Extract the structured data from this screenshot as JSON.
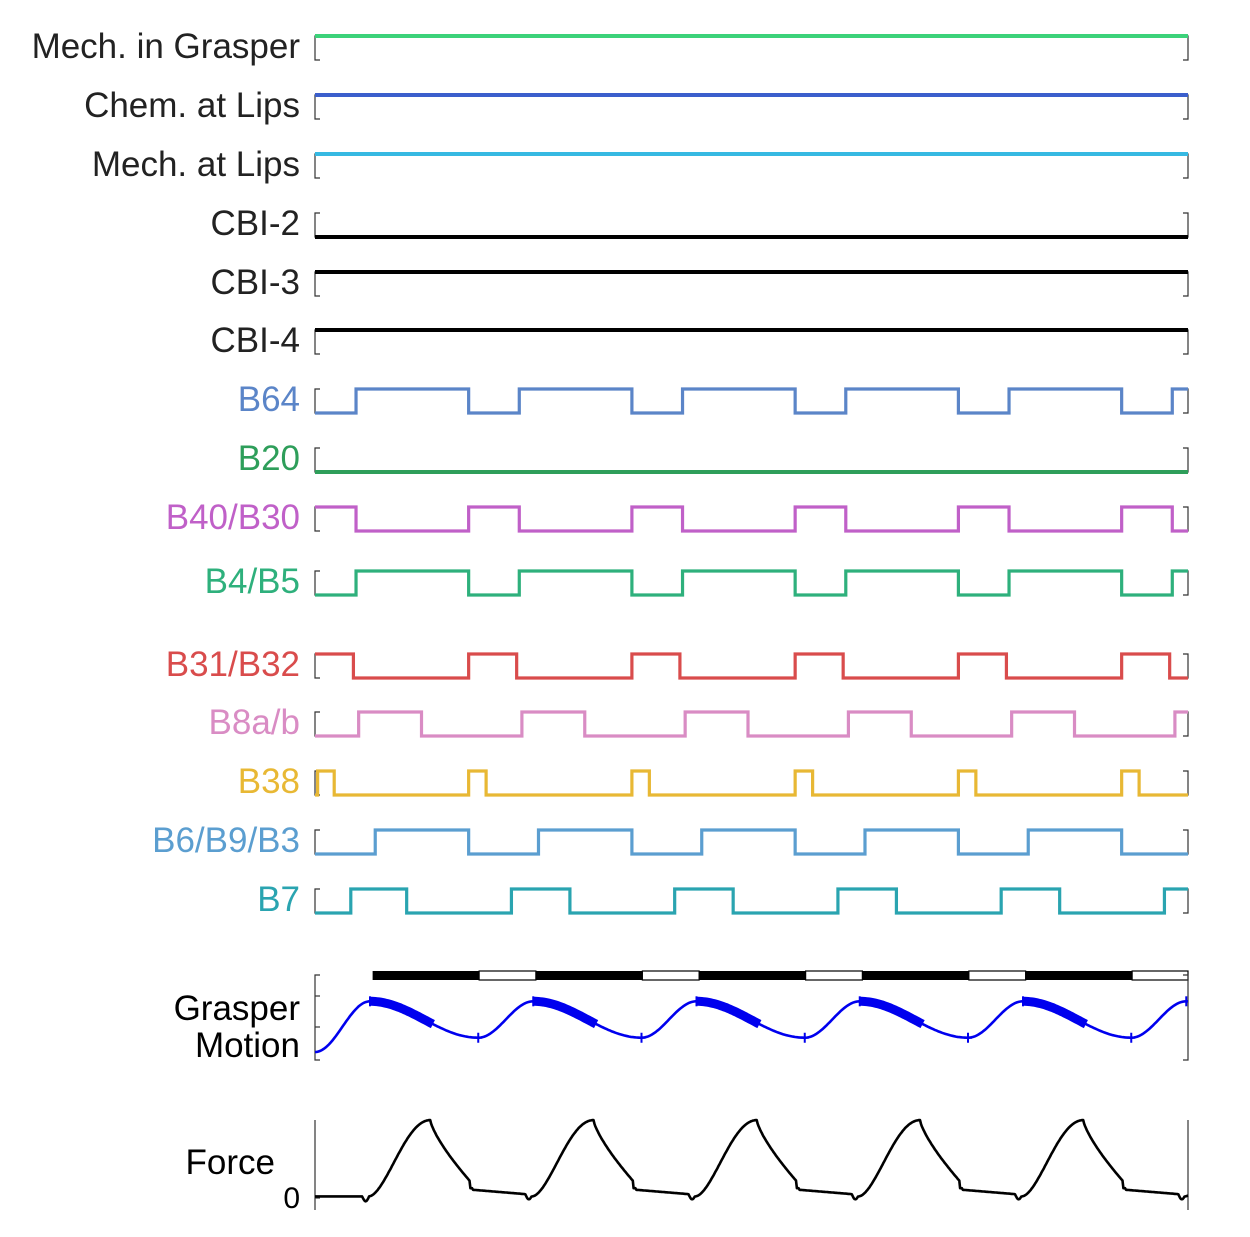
{
  "colors": {
    "mech_grasper": "#3cd27a",
    "chem_lips": "#3b5fcc",
    "mech_lips": "#36b9e2",
    "cbi": "#000000",
    "b64": "#5b85c8",
    "b20": "#2e9e5a",
    "b40_b30": "#c060c8",
    "b4_b5": "#2eb07c",
    "b31_b32": "#d94c4c",
    "b8ab": "#d98cc4",
    "b38": "#e8b834",
    "b6_b9_b3": "#5b9ed0",
    "b7": "#2aa4b0",
    "grasper": "#0000ee",
    "force": "#000000",
    "axis": "#333333"
  },
  "chart_data": [
    {
      "type": "line",
      "title": "",
      "xlim": [
        0,
        1000
      ],
      "traces": [
        {
          "name": "Mech. in Grasper",
          "state": "high",
          "color_key": "mech_grasper"
        },
        {
          "name": "Chem. at Lips",
          "state": "high",
          "color_key": "chem_lips"
        },
        {
          "name": "Mech. at Lips",
          "state": "high",
          "color_key": "mech_lips"
        },
        {
          "name": "CBI-2",
          "state": "low",
          "color_key": "cbi"
        },
        {
          "name": "CBI-3",
          "state": "high",
          "color_key": "cbi"
        },
        {
          "name": "CBI-4",
          "state": "high",
          "color_key": "cbi"
        },
        {
          "name": "B64",
          "state": "pulses",
          "color_key": "b64",
          "on": [
            [
              47,
              176
            ],
            [
              234,
              363
            ],
            [
              421,
              550
            ],
            [
              608,
              737
            ],
            [
              795,
              924
            ],
            [
              982,
              1000
            ]
          ]
        },
        {
          "name": "B20",
          "state": "low",
          "color_key": "b20"
        },
        {
          "name": "B40/B30",
          "state": "pulses",
          "color_key": "b40_b30",
          "on": [
            [
              0,
              47
            ],
            [
              176,
              234
            ],
            [
              363,
              421
            ],
            [
              550,
              608
            ],
            [
              737,
              795
            ],
            [
              924,
              982
            ]
          ]
        },
        {
          "name": "B4/B5",
          "state": "pulses",
          "color_key": "b4_b5",
          "on": [
            [
              47,
              176
            ],
            [
              234,
              363
            ],
            [
              421,
              550
            ],
            [
              608,
              737
            ],
            [
              795,
              924
            ],
            [
              982,
              1000
            ]
          ]
        },
        {
          "name": "B31/B32",
          "state": "pulses",
          "color_key": "b31_b32",
          "on": [
            [
              0,
              44
            ],
            [
              176,
              231
            ],
            [
              363,
              418
            ],
            [
              550,
              605
            ],
            [
              737,
              792
            ],
            [
              924,
              979
            ]
          ]
        },
        {
          "name": "B8a/b",
          "state": "pulses",
          "color_key": "b8ab",
          "on": [
            [
              50,
              122
            ],
            [
              237,
              309
            ],
            [
              424,
              496
            ],
            [
              611,
              683
            ],
            [
              798,
              870
            ],
            [
              985,
              1000
            ]
          ]
        },
        {
          "name": "B38",
          "state": "pulses",
          "color_key": "b38",
          "on": [
            [
              3,
              22
            ],
            [
              176,
              196
            ],
            [
              363,
              383
            ],
            [
              550,
              570
            ],
            [
              737,
              757
            ],
            [
              924,
              944
            ]
          ]
        },
        {
          "name": "B6/B9/B3",
          "state": "pulses",
          "color_key": "b6_b9_b3",
          "on": [
            [
              69,
              176
            ],
            [
              256,
              363
            ],
            [
              443,
              550
            ],
            [
              630,
              737
            ],
            [
              817,
              924
            ]
          ]
        },
        {
          "name": "B7",
          "state": "pulses",
          "color_key": "b7",
          "on": [
            [
              41,
              105
            ],
            [
              225,
              292
            ],
            [
              412,
              479
            ],
            [
              599,
              666
            ],
            [
              786,
              853
            ],
            [
              973,
              1000
            ]
          ]
        }
      ]
    },
    {
      "type": "bar",
      "title": "",
      "xlim": [
        0,
        1000
      ],
      "black_segments": [
        [
          66,
          188
        ],
        [
          253,
          375
        ],
        [
          440,
          562
        ],
        [
          627,
          749
        ],
        [
          814,
          936
        ]
      ],
      "white_segments": [
        [
          188,
          253
        ],
        [
          375,
          440
        ],
        [
          562,
          627
        ],
        [
          749,
          814
        ],
        [
          936,
          1000
        ]
      ]
    },
    {
      "type": "line",
      "title": "",
      "ylabel": "Grasper Motion",
      "ylabel_lines": [
        "Grasper",
        "Motion"
      ],
      "xlim": [
        0,
        1000
      ],
      "ylim": [
        0,
        1
      ],
      "period": 187,
      "peak_times": [
        63,
        250,
        437,
        624,
        811,
        998
      ],
      "trough_times": [
        187,
        374,
        561,
        748,
        935
      ],
      "thick_segments": [
        [
          63,
          136
        ],
        [
          250,
          323
        ],
        [
          437,
          510
        ],
        [
          624,
          697
        ],
        [
          811,
          884
        ]
      ],
      "peak_value": 0.78,
      "trough_value": 0.22,
      "start_value": 0.0
    },
    {
      "type": "line",
      "title": "",
      "ylabel": "Force",
      "xlim": [
        0,
        1000
      ],
      "ylim": [
        0,
        1
      ],
      "yticks": [
        {
          "value": 0,
          "label": "0"
        }
      ],
      "cycles_start": [
        62,
        249,
        436,
        623,
        810
      ],
      "period": 187,
      "peak_value": 0.95,
      "drop_value": 0.12,
      "baseline": 0.02
    }
  ]
}
